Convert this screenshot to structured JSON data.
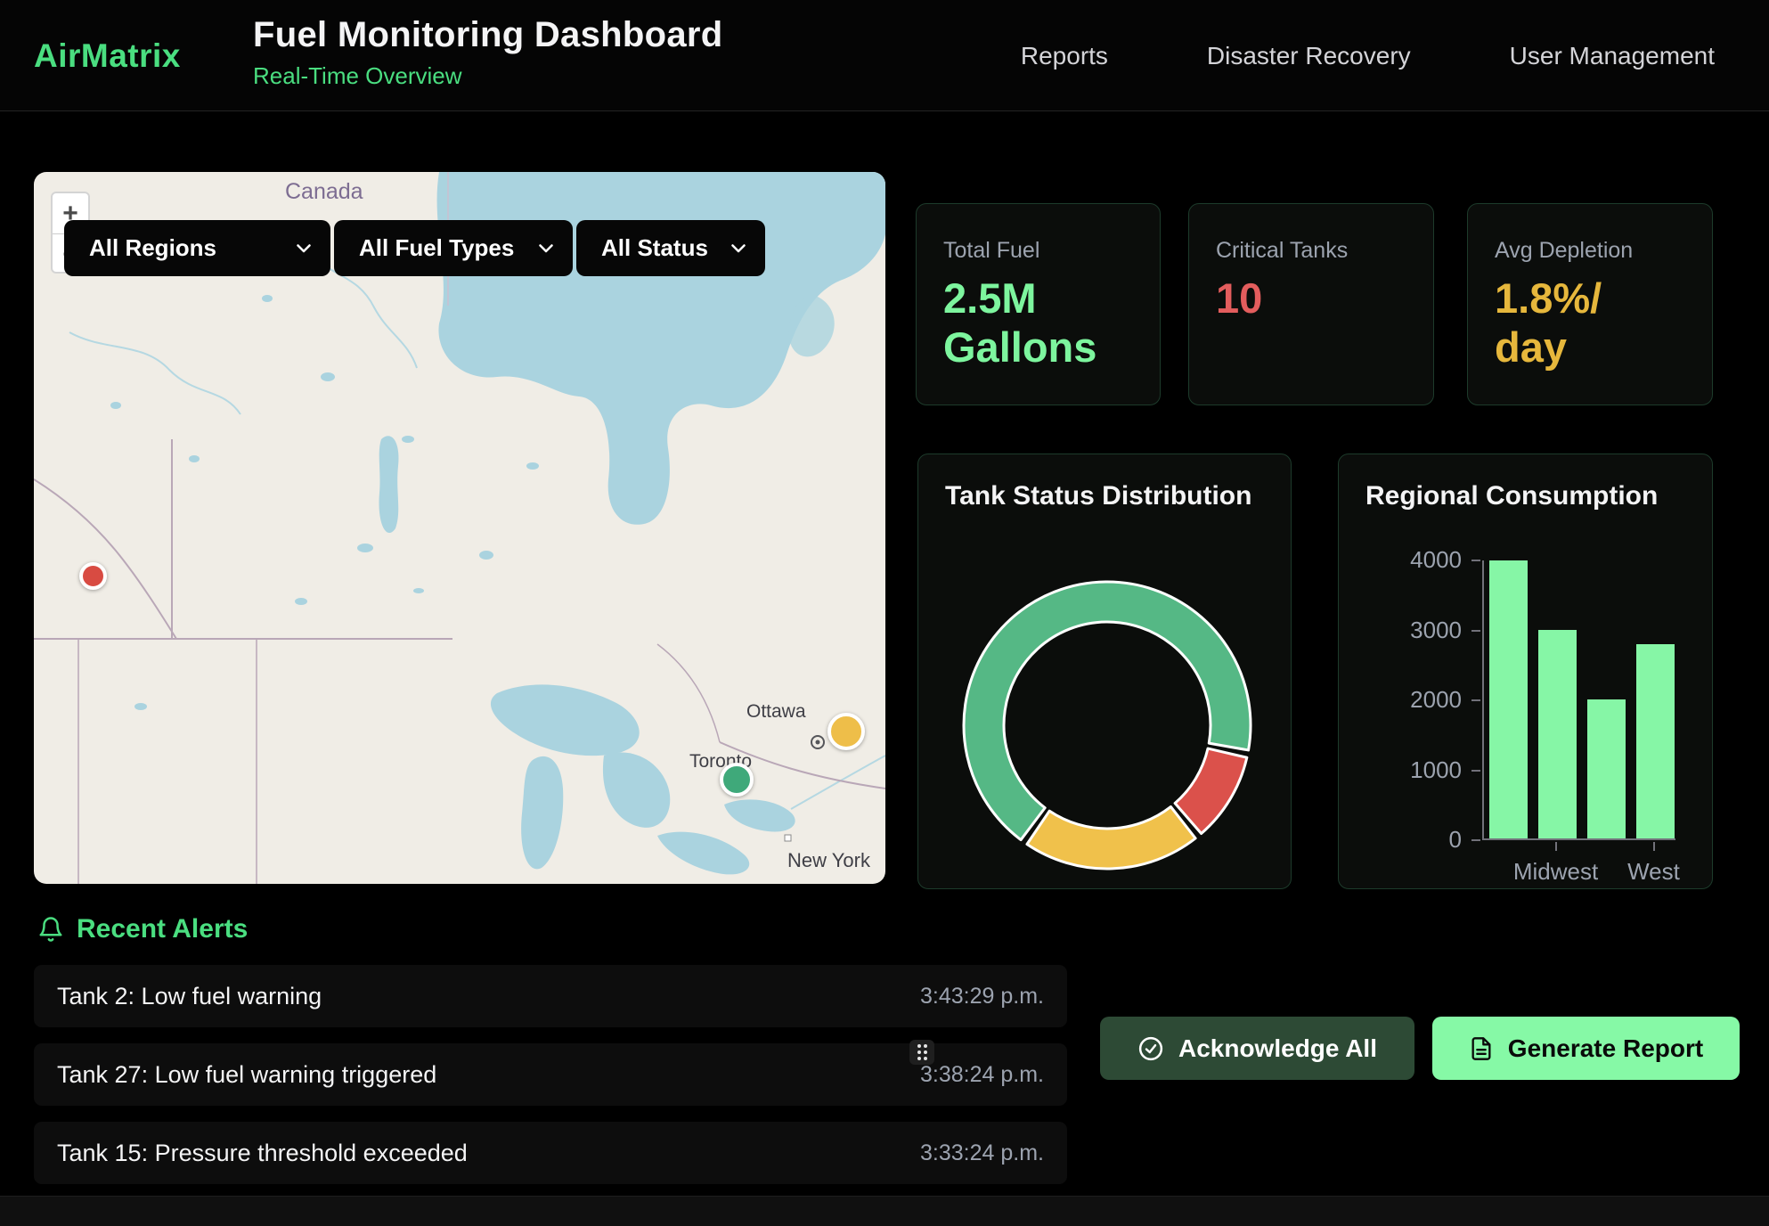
{
  "header": {
    "logo": "AirMatrix",
    "title": "Fuel Monitoring Dashboard",
    "subtitle": "Real-Time Overview",
    "nav": [
      {
        "label": "Reports"
      },
      {
        "label": "Disaster Recovery"
      },
      {
        "label": "User Management"
      }
    ]
  },
  "map": {
    "zoom_in": "+",
    "zoom_out": "−",
    "filters": [
      {
        "label": "All Regions"
      },
      {
        "label": "All Fuel Types"
      },
      {
        "label": "All Status"
      }
    ],
    "labels": {
      "country": "Canada",
      "city_1": "Ottawa",
      "city_2": "Toronto",
      "city_3": "New York"
    },
    "markers": [
      {
        "status": "critical",
        "color": "#d84b42"
      },
      {
        "status": "warning",
        "color": "#eebe49"
      },
      {
        "status": "normal",
        "color": "#3fa97a"
      }
    ]
  },
  "stats": [
    {
      "label": "Total Fuel",
      "lines": [
        "2.5M",
        "Gallons"
      ],
      "color": "#7df59e"
    },
    {
      "label": "Critical Tanks",
      "lines": [
        "10"
      ],
      "color": "#e35d5d"
    },
    {
      "label": "Avg Depletion",
      "lines": [
        "1.8%/",
        "day"
      ],
      "color": "#e6b73c"
    }
  ],
  "chart_data": [
    {
      "type": "pie",
      "donut": true,
      "title": "Tank Status Distribution",
      "legend": "none",
      "segments": [
        {
          "label": "normal",
          "color": "#55b885",
          "start_deg": 217,
          "end_deg": 460,
          "share_pct": 68
        },
        {
          "label": "critical",
          "color": "#db514b",
          "start_deg": 103,
          "end_deg": 139,
          "share_pct": 10
        },
        {
          "label": "warning",
          "color": "#f0c14b",
          "start_deg": 142,
          "end_deg": 214,
          "share_pct": 20
        }
      ]
    },
    {
      "type": "bar",
      "title": "Regional Consumption",
      "categories": [
        "",
        "Midwest",
        "",
        "West"
      ],
      "values": [
        4000,
        3000,
        2000,
        2800
      ],
      "ylim": [
        0,
        4000
      ],
      "yticks": [
        0,
        1000,
        2000,
        3000,
        4000
      ],
      "bar_color": "#86f6a6",
      "grid": false,
      "visible_xtick_labels": [
        {
          "label": "Midwest",
          "bar_index": 1
        },
        {
          "label": "West",
          "bar_index": 3
        }
      ]
    }
  ],
  "alerts": {
    "heading": "Recent Alerts",
    "items": [
      {
        "text": "Tank 2: Low fuel warning",
        "time": "3:43:29 p.m."
      },
      {
        "text": "Tank 27: Low fuel warning triggered",
        "time": "3:38:24 p.m."
      },
      {
        "text": "Tank 15: Pressure threshold exceeded",
        "time": "3:33:24 p.m."
      }
    ],
    "acknowledge_label": "Acknowledge All",
    "generate_label": "Generate Report"
  },
  "colors": {
    "accent_green": "#4ade80",
    "value_green": "#7df59e",
    "status_red": "#e35d5d",
    "status_yellow": "#e6b73c"
  }
}
